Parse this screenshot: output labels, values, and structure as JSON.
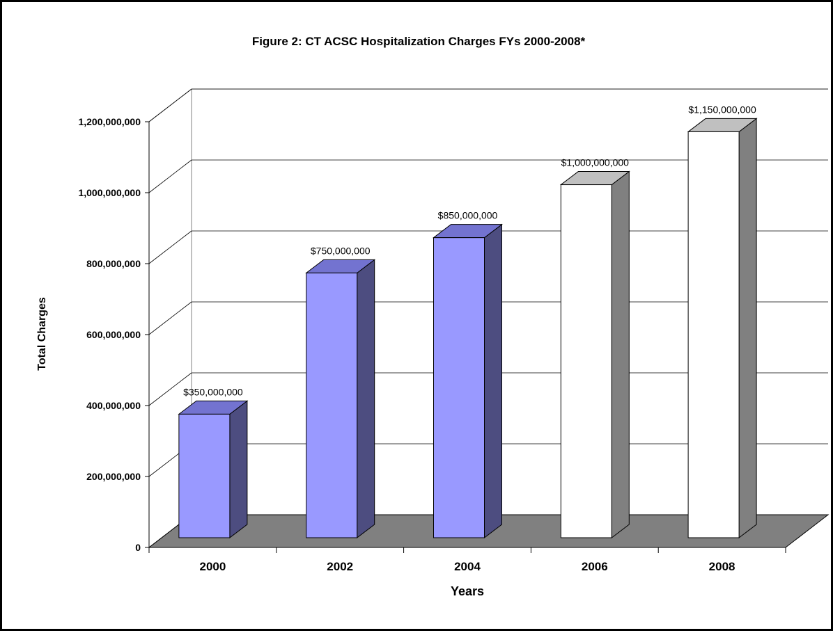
{
  "chart_data": {
    "type": "bar",
    "title": "Figure 2: CT ACSC Hospitalization Charges FYs 2000-2008*",
    "xlabel": "Years",
    "ylabel": "Total Charges",
    "categories": [
      "2000",
      "2002",
      "2004",
      "2006",
      "2008"
    ],
    "values": [
      350000000,
      750000000,
      850000000,
      1000000000,
      1150000000
    ],
    "data_labels": [
      "$350,000,000",
      "$750,000,000",
      "$850,000,000",
      "$1,000,000,000",
      "$1,150,000,000"
    ],
    "ylim": [
      0,
      1200000000
    ],
    "yticks": [
      0,
      200000000,
      400000000,
      600000000,
      800000000,
      1000000000,
      1200000000
    ],
    "ytick_labels": [
      "0",
      "200,000,000",
      "400,000,000",
      "600,000,000",
      "800,000,000",
      "1,000,000,000",
      "1,200,000,000"
    ],
    "grid": true,
    "three_d": true,
    "bar_styles": [
      "blue",
      "blue",
      "blue",
      "white",
      "white"
    ],
    "colors": {
      "blue_front": "#9999ff",
      "blue_side": "#4d4d80",
      "blue_top": "#7373d0",
      "white_front": "#ffffff",
      "white_side": "#808080",
      "white_top": "#c0c0c0",
      "floor": "#808080",
      "gridline": "#000000"
    }
  }
}
